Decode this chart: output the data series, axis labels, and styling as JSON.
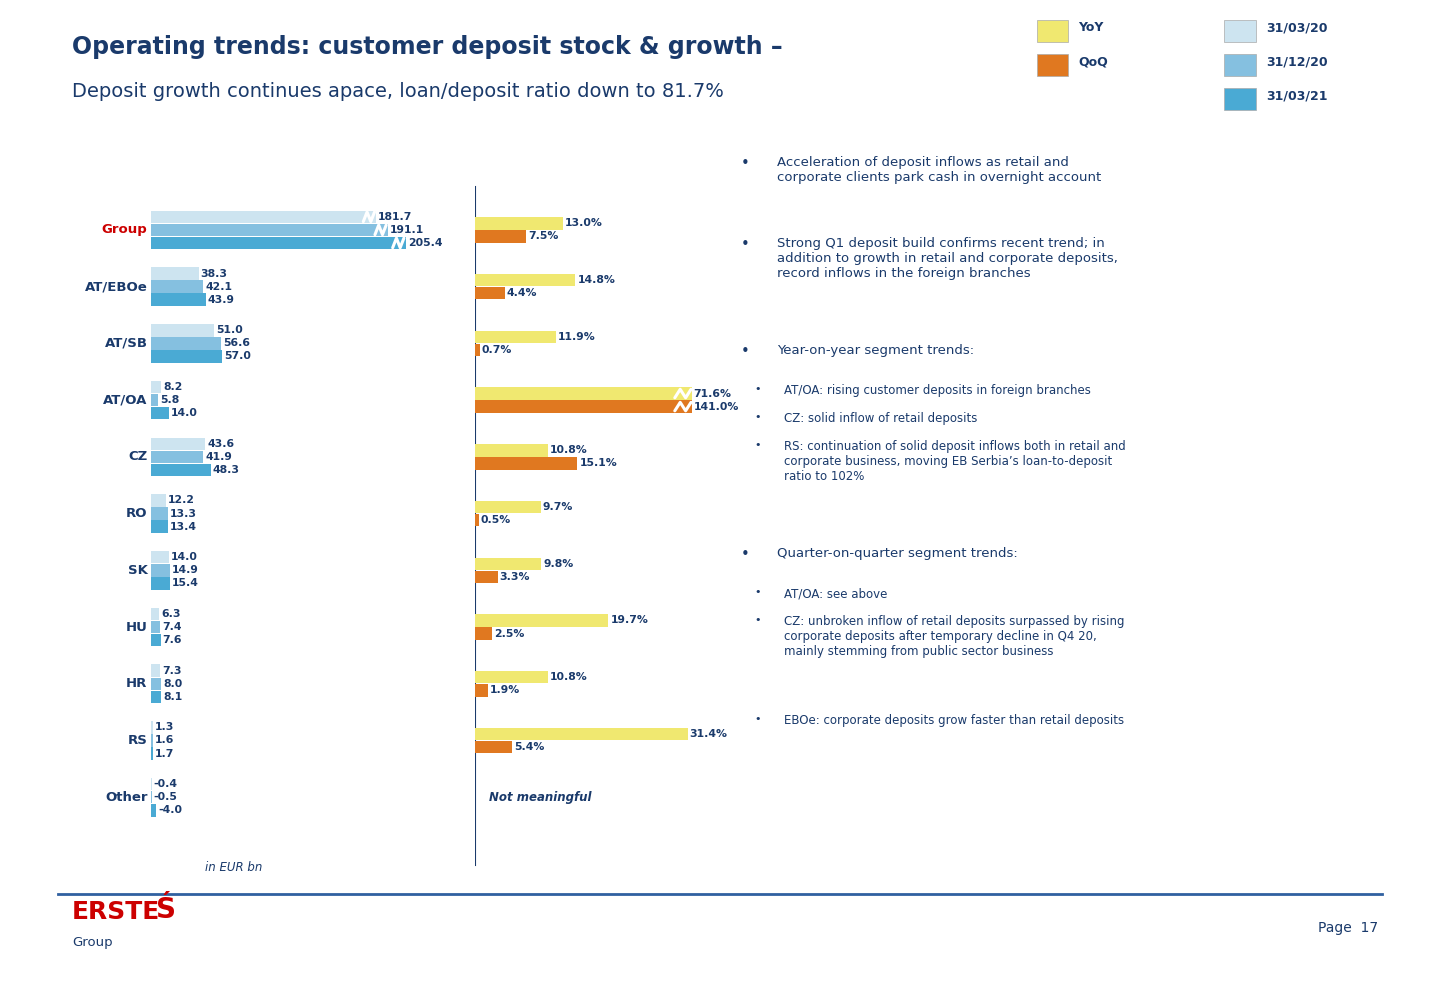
{
  "title_bold": "Operating trends: customer deposit stock & growth –",
  "title_sub": "Deposit growth continues apace, loan/deposit ratio down to 81.7%",
  "categories": [
    "Group",
    "AT/EBOe",
    "AT/SB",
    "AT/OA",
    "CZ",
    "RO",
    "SK",
    "HU",
    "HR",
    "RS",
    "Other"
  ],
  "stock_31_03_20": [
    181.7,
    38.3,
    51.0,
    8.2,
    43.6,
    12.2,
    14.0,
    6.3,
    7.3,
    1.3,
    -0.4
  ],
  "stock_31_12_20": [
    191.1,
    42.1,
    56.6,
    5.8,
    41.9,
    13.3,
    14.9,
    7.4,
    8.0,
    1.6,
    -0.5
  ],
  "stock_31_03_21": [
    205.4,
    43.9,
    57.0,
    14.0,
    48.3,
    13.4,
    15.4,
    7.6,
    8.1,
    1.7,
    -4.0
  ],
  "yoy_pct": [
    13.0,
    14.8,
    11.9,
    71.6,
    10.8,
    9.7,
    9.8,
    19.7,
    10.8,
    31.4,
    null
  ],
  "qoq_pct": [
    7.5,
    4.4,
    0.7,
    141.0,
    15.1,
    0.5,
    3.3,
    2.5,
    1.9,
    5.4,
    null
  ],
  "color_31_03_20": "#cde4f0",
  "color_31_12_20": "#85c0e0",
  "color_31_03_21": "#4aaad4",
  "color_yoy": "#f0e870",
  "color_qoq": "#e07820",
  "title_color": "#1a3a6b",
  "label_color": "#1a3a6b",
  "group_label_color": "#cc0000",
  "background_color": "#ffffff",
  "note_text": "in EUR bn",
  "not_meaningful_text": "Not meaningful",
  "max_display_stock": 70,
  "stock_scale": 70,
  "max_display_pct": 35,
  "pct_scale": 35
}
